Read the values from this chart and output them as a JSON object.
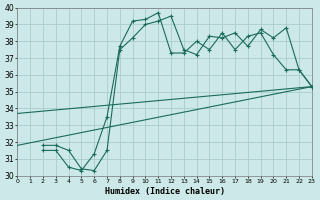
{
  "xlabel": "Humidex (Indice chaleur)",
  "xlim": [
    0,
    23
  ],
  "ylim": [
    30,
    40
  ],
  "xticks": [
    0,
    1,
    2,
    3,
    4,
    5,
    6,
    7,
    8,
    9,
    10,
    11,
    12,
    13,
    14,
    15,
    16,
    17,
    18,
    19,
    20,
    21,
    22,
    23
  ],
  "yticks": [
    30,
    31,
    32,
    33,
    34,
    35,
    36,
    37,
    38,
    39,
    40
  ],
  "bg_color": "#cce8e8",
  "grid_color": "#aacccc",
  "line_color": "#1a6b5a",
  "line1_x": [
    0,
    23
  ],
  "line1_y": [
    33.7,
    35.3
  ],
  "line2_x": [
    0,
    23
  ],
  "line2_y": [
    31.8,
    35.3
  ],
  "line3_x": [
    2,
    3,
    4,
    5,
    6,
    7,
    8,
    9,
    10,
    11,
    12,
    13,
    14,
    15,
    16,
    17,
    18,
    19,
    20,
    21,
    22,
    23
  ],
  "line3_y": [
    31.5,
    31.5,
    30.5,
    30.3,
    31.3,
    33.5,
    37.7,
    39.2,
    39.3,
    39.7,
    37.3,
    37.3,
    38.0,
    37.5,
    38.5,
    37.5,
    38.3,
    38.5,
    37.2,
    36.3,
    36.3,
    35.3
  ],
  "line4_x": [
    2,
    3,
    4,
    5,
    6,
    7,
    8,
    9,
    10,
    11,
    12,
    13,
    14,
    15,
    16,
    17,
    18,
    19,
    20,
    21,
    22,
    23
  ],
  "line4_y": [
    31.8,
    31.8,
    31.5,
    30.4,
    30.3,
    31.5,
    37.5,
    38.2,
    39.0,
    39.2,
    39.5,
    37.5,
    37.2,
    38.3,
    38.2,
    38.5,
    37.7,
    38.7,
    38.2,
    38.8,
    36.3,
    35.3
  ]
}
